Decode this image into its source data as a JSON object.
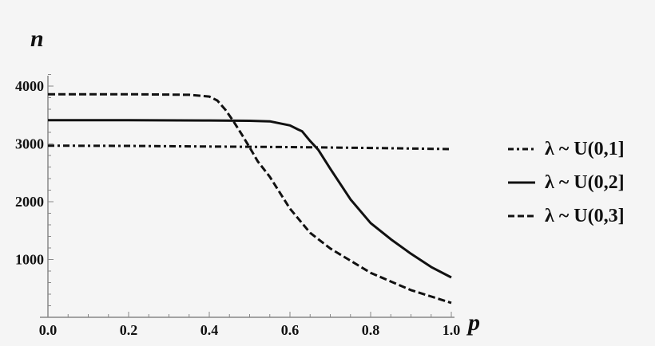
{
  "chart_data": {
    "type": "line",
    "title": "",
    "xlabel": "p",
    "ylabel": "n",
    "xlim": [
      0,
      1.0
    ],
    "ylim": [
      0,
      4200
    ],
    "xticks": [
      0.0,
      0.2,
      0.4,
      0.6,
      0.8,
      1.0
    ],
    "xtick_labels": [
      "0.0",
      "0.2",
      "0.4",
      "0.6",
      "0.8",
      "1.0"
    ],
    "yticks": [
      1000,
      2000,
      3000,
      4000
    ],
    "ytick_labels": [
      "1000",
      "2000",
      "3000",
      "4000"
    ],
    "grid": false,
    "legend_position": "right",
    "series": [
      {
        "name": "λ ~ U(0,1]",
        "style": "dashdot",
        "x": [
          0.0,
          0.2,
          0.4,
          0.6,
          0.8,
          1.0
        ],
        "y": [
          2970,
          2965,
          2955,
          2945,
          2930,
          2910
        ]
      },
      {
        "name": "λ ~ U(0,2]",
        "style": "solid",
        "x": [
          0.0,
          0.2,
          0.4,
          0.5,
          0.55,
          0.6,
          0.62,
          0.63,
          0.65,
          0.67,
          0.7,
          0.75,
          0.8,
          0.85,
          0.9,
          0.95,
          1.0
        ],
        "y": [
          3410,
          3410,
          3405,
          3400,
          3390,
          3320,
          3250,
          3220,
          3050,
          2900,
          2570,
          2040,
          1630,
          1350,
          1100,
          870,
          690
        ]
      },
      {
        "name": "λ ~ U(0,3]",
        "style": "dashed",
        "x": [
          0.0,
          0.2,
          0.35,
          0.4,
          0.42,
          0.44,
          0.46,
          0.48,
          0.5,
          0.52,
          0.55,
          0.6,
          0.65,
          0.7,
          0.8,
          0.9,
          1.0
        ],
        "y": [
          3860,
          3860,
          3850,
          3820,
          3750,
          3590,
          3390,
          3170,
          2940,
          2700,
          2430,
          1880,
          1460,
          1190,
          770,
          470,
          250
        ]
      }
    ]
  },
  "legend": {
    "items": [
      {
        "label": "λ ~ U(0,1]",
        "style": "dashdot"
      },
      {
        "label": "λ ~ U(0,2]",
        "style": "solid"
      },
      {
        "label": "λ ~ U(0,3]",
        "style": "dashed"
      }
    ]
  },
  "colors": {
    "line": "#111111",
    "axis": "#888888",
    "background": "#f5f5f5"
  }
}
